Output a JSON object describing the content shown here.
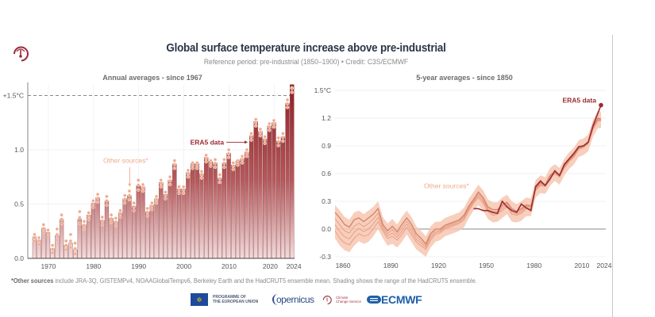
{
  "header": {
    "title": "Global surface temperature increase above pre-industrial",
    "subtitle": "Reference period: pre-industrial (1850–1900) • Credit: C3S/ECMWF",
    "logo_icon": "thermometer-circle-icon"
  },
  "colors": {
    "era5": "#9b2a2f",
    "era5_light": "#f2d9d9",
    "other_sources": "#f0a98a",
    "shading": "#f6c7b0",
    "title": "#2b3548",
    "threshold_line": "#5a6170"
  },
  "chart_data": [
    {
      "type": "bar",
      "title": "Annual averages - since 1967",
      "xlabel": "",
      "ylabel": "",
      "ylim": [
        0,
        1.6
      ],
      "yticks": [
        0.0,
        0.5,
        1.0,
        1.5
      ],
      "ytick_labels": [
        "0.0",
        "0.5",
        "1.0",
        "+1.5°C"
      ],
      "xticks": [
        1970,
        1980,
        1990,
        2000,
        2010,
        2020,
        2024
      ],
      "xtick_labels": [
        "1970",
        "1980",
        "1990",
        "2000",
        "2010",
        "2020",
        "2024"
      ],
      "grid": true,
      "threshold": {
        "value": 1.5,
        "style": "dashed"
      },
      "annotations": [
        {
          "text": "ERA5 data",
          "target_year": 2015
        },
        {
          "text": "Other sources*",
          "target_year": 1988
        }
      ],
      "categories": [
        1967,
        1968,
        1969,
        1970,
        1971,
        1972,
        1973,
        1974,
        1975,
        1976,
        1977,
        1978,
        1979,
        1980,
        1981,
        1982,
        1983,
        1984,
        1985,
        1986,
        1987,
        1988,
        1989,
        1990,
        1991,
        1992,
        1993,
        1994,
        1995,
        1996,
        1997,
        1998,
        1999,
        2000,
        2001,
        2002,
        2003,
        2004,
        2005,
        2006,
        2007,
        2008,
        2009,
        2010,
        2011,
        2012,
        2013,
        2014,
        2015,
        2016,
        2017,
        2018,
        2019,
        2020,
        2021,
        2022,
        2023,
        2024
      ],
      "series": [
        {
          "name": "ERA5 data",
          "values": [
            0.2,
            0.17,
            0.28,
            0.24,
            0.09,
            0.21,
            0.36,
            0.12,
            0.14,
            0.08,
            0.36,
            0.31,
            0.4,
            0.51,
            0.56,
            0.35,
            0.53,
            0.37,
            0.34,
            0.42,
            0.55,
            0.58,
            0.48,
            0.67,
            0.66,
            0.43,
            0.49,
            0.55,
            0.7,
            0.59,
            0.72,
            0.87,
            0.64,
            0.64,
            0.79,
            0.87,
            0.87,
            0.78,
            0.93,
            0.89,
            0.88,
            0.74,
            0.88,
            0.97,
            0.86,
            0.9,
            0.92,
            0.98,
            1.13,
            1.26,
            1.17,
            1.1,
            1.22,
            1.25,
            1.08,
            1.12,
            1.43,
            1.6
          ]
        },
        {
          "name": "Other sources*",
          "values": [
            0.22,
            0.19,
            0.31,
            0.26,
            0.12,
            0.27,
            0.4,
            0.16,
            0.22,
            0.14,
            0.43,
            0.34,
            0.42,
            0.53,
            0.59,
            0.38,
            0.57,
            0.4,
            0.37,
            0.44,
            0.58,
            0.62,
            0.51,
            0.72,
            0.68,
            0.46,
            0.51,
            0.57,
            0.72,
            0.61,
            0.75,
            0.9,
            0.66,
            0.66,
            0.81,
            0.88,
            0.88,
            0.8,
            0.95,
            0.9,
            0.91,
            0.77,
            0.91,
            1.0,
            0.88,
            0.9,
            0.94,
            1.0,
            1.15,
            1.28,
            1.19,
            1.12,
            1.24,
            1.27,
            1.11,
            1.15,
            1.46,
            1.57
          ]
        }
      ]
    },
    {
      "type": "line",
      "title": "5-year averages - since 1850",
      "xlabel": "",
      "ylabel": "",
      "ylim": [
        -0.3,
        1.5
      ],
      "xlim": [
        1855,
        2025
      ],
      "yticks": [
        -0.3,
        0.0,
        0.3,
        0.6,
        0.9,
        1.2,
        1.5
      ],
      "ytick_labels": [
        "-0.3",
        "0.0",
        "0.3",
        "0.6",
        "0.9",
        "1.2",
        "1.5°C"
      ],
      "xticks": [
        1860,
        1890,
        1920,
        1950,
        1980,
        2010,
        2024
      ],
      "xtick_labels": [
        "1860",
        "1890",
        "1920",
        "1950",
        "1980",
        "2010",
        "2024"
      ],
      "grid": true,
      "annotations": [
        {
          "text": "ERA5 data",
          "position": "top-right"
        },
        {
          "text": "Other sources*",
          "position": "center-left"
        }
      ],
      "x": [
        1855,
        1858,
        1861,
        1864,
        1867,
        1870,
        1873,
        1876,
        1879,
        1882,
        1885,
        1888,
        1891,
        1894,
        1897,
        1900,
        1903,
        1906,
        1909,
        1912,
        1915,
        1918,
        1921,
        1924,
        1927,
        1930,
        1933,
        1936,
        1939,
        1942,
        1945,
        1948,
        1951,
        1954,
        1957,
        1960,
        1963,
        1966,
        1969,
        1972,
        1975,
        1978,
        1981,
        1984,
        1987,
        1990,
        1993,
        1996,
        1999,
        2002,
        2005,
        2008,
        2011,
        2014,
        2017,
        2020,
        2022
      ],
      "series": [
        {
          "name": "Other sources* (upper)",
          "values": [
            0.18,
            0.12,
            0.05,
            0.02,
            0.1,
            0.12,
            0.08,
            0.12,
            0.16,
            0.22,
            0.05,
            -0.02,
            0.03,
            -0.03,
            0.05,
            0.12,
            0.05,
            -0.05,
            -0.1,
            -0.16,
            -0.05,
            0.0,
            0.0,
            0.04,
            0.06,
            0.08,
            0.1,
            0.15,
            0.25,
            0.32,
            0.4,
            0.34,
            0.24,
            0.21,
            0.21,
            0.26,
            0.29,
            0.22,
            0.19,
            0.22,
            0.26,
            0.25,
            0.45,
            0.5,
            0.48,
            0.58,
            0.62,
            0.58,
            0.68,
            0.75,
            0.8,
            0.88,
            0.9,
            0.94,
            1.1,
            1.2,
            1.19
          ]
        },
        {
          "name": "Other sources* (lower)",
          "values": [
            -0.02,
            -0.1,
            -0.15,
            -0.17,
            -0.1,
            -0.05,
            -0.08,
            -0.06,
            0.0,
            0.08,
            -0.02,
            -0.1,
            -0.08,
            -0.12,
            -0.06,
            0.02,
            -0.06,
            -0.14,
            -0.18,
            -0.22,
            -0.12,
            -0.06,
            -0.04,
            0.0,
            0.02,
            0.04,
            0.06,
            0.1,
            0.2,
            0.28,
            0.34,
            0.28,
            0.19,
            0.15,
            0.16,
            0.2,
            0.24,
            0.16,
            0.15,
            0.17,
            0.22,
            0.22,
            0.42,
            0.47,
            0.46,
            0.55,
            0.6,
            0.56,
            0.66,
            0.73,
            0.78,
            0.86,
            0.88,
            0.92,
            1.08,
            1.17,
            1.17
          ]
        },
        {
          "name": "ERA5 data",
          "x": [
            1942,
            1945,
            1948,
            1951,
            1954,
            1957,
            1960,
            1963,
            1966,
            1969,
            1972,
            1975,
            1978,
            1981,
            1984,
            1987,
            1990,
            1993,
            1996,
            1999,
            2002,
            2005,
            2008,
            2011,
            2014,
            2017,
            2020,
            2022
          ],
          "values": [
            0.22,
            0.22,
            0.2,
            0.2,
            0.18,
            0.17,
            0.3,
            0.24,
            0.2,
            0.18,
            0.27,
            0.23,
            0.2,
            0.46,
            0.52,
            0.47,
            0.54,
            0.63,
            0.58,
            0.7,
            0.76,
            0.82,
            0.89,
            0.9,
            0.94,
            1.12,
            1.25,
            1.34
          ]
        }
      ],
      "shading": {
        "name": "HadCRUT5 ensemble range",
        "upper_offset": 0.08,
        "lower_offset": 0.08
      }
    }
  ],
  "footnote": {
    "bold": "*Other sources",
    "text": " include JRA-3Q, GISTEMPv4, NOAAGlobalTempv6, Berkeley Earth and the HadCRUT5 ensemble mean. Shading shows the range of the HadCRUT5 ensemble."
  },
  "logos": {
    "eu_line1": "PROGRAMME OF",
    "eu_line2": "THE EUROPEAN UNION",
    "eu_icon": "eu-flag-icon",
    "copernicus": "opernicus",
    "c3s_line1": "Climate",
    "c3s_line2": "Change Service",
    "ecmwf": "ECMWF",
    "ecmwf_icon": "ecmwf-logo-icon"
  }
}
